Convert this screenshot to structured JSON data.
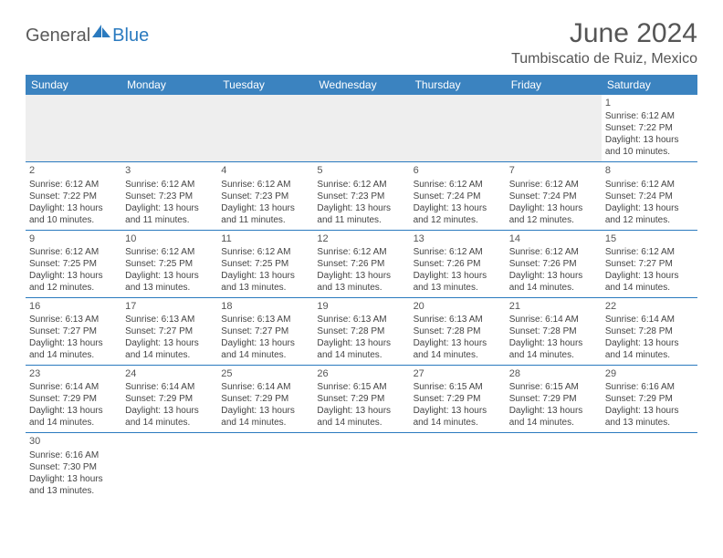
{
  "brand": {
    "general": "General",
    "blue": "Blue"
  },
  "title": {
    "month": "June 2024",
    "location": "Tumbiscatio de Ruiz, Mexico"
  },
  "dayHeaders": [
    "Sunday",
    "Monday",
    "Tuesday",
    "Wednesday",
    "Thursday",
    "Friday",
    "Saturday"
  ],
  "colors": {
    "headerBg": "#3b83c0",
    "headerText": "#ffffff",
    "ruleLine": "#2a7abf",
    "emptyBg": "#eeeeee",
    "bodyText": "#444444",
    "titleText": "#555555",
    "brandGray": "#5a5a5a",
    "brandBlue": "#2a7abf"
  },
  "weeks": [
    [
      null,
      null,
      null,
      null,
      null,
      null,
      {
        "n": "1",
        "sr": "Sunrise: 6:12 AM",
        "ss": "Sunset: 7:22 PM",
        "d1": "Daylight: 13 hours",
        "d2": "and 10 minutes."
      }
    ],
    [
      {
        "n": "2",
        "sr": "Sunrise: 6:12 AM",
        "ss": "Sunset: 7:22 PM",
        "d1": "Daylight: 13 hours",
        "d2": "and 10 minutes."
      },
      {
        "n": "3",
        "sr": "Sunrise: 6:12 AM",
        "ss": "Sunset: 7:23 PM",
        "d1": "Daylight: 13 hours",
        "d2": "and 11 minutes."
      },
      {
        "n": "4",
        "sr": "Sunrise: 6:12 AM",
        "ss": "Sunset: 7:23 PM",
        "d1": "Daylight: 13 hours",
        "d2": "and 11 minutes."
      },
      {
        "n": "5",
        "sr": "Sunrise: 6:12 AM",
        "ss": "Sunset: 7:23 PM",
        "d1": "Daylight: 13 hours",
        "d2": "and 11 minutes."
      },
      {
        "n": "6",
        "sr": "Sunrise: 6:12 AM",
        "ss": "Sunset: 7:24 PM",
        "d1": "Daylight: 13 hours",
        "d2": "and 12 minutes."
      },
      {
        "n": "7",
        "sr": "Sunrise: 6:12 AM",
        "ss": "Sunset: 7:24 PM",
        "d1": "Daylight: 13 hours",
        "d2": "and 12 minutes."
      },
      {
        "n": "8",
        "sr": "Sunrise: 6:12 AM",
        "ss": "Sunset: 7:24 PM",
        "d1": "Daylight: 13 hours",
        "d2": "and 12 minutes."
      }
    ],
    [
      {
        "n": "9",
        "sr": "Sunrise: 6:12 AM",
        "ss": "Sunset: 7:25 PM",
        "d1": "Daylight: 13 hours",
        "d2": "and 12 minutes."
      },
      {
        "n": "10",
        "sr": "Sunrise: 6:12 AM",
        "ss": "Sunset: 7:25 PM",
        "d1": "Daylight: 13 hours",
        "d2": "and 13 minutes."
      },
      {
        "n": "11",
        "sr": "Sunrise: 6:12 AM",
        "ss": "Sunset: 7:25 PM",
        "d1": "Daylight: 13 hours",
        "d2": "and 13 minutes."
      },
      {
        "n": "12",
        "sr": "Sunrise: 6:12 AM",
        "ss": "Sunset: 7:26 PM",
        "d1": "Daylight: 13 hours",
        "d2": "and 13 minutes."
      },
      {
        "n": "13",
        "sr": "Sunrise: 6:12 AM",
        "ss": "Sunset: 7:26 PM",
        "d1": "Daylight: 13 hours",
        "d2": "and 13 minutes."
      },
      {
        "n": "14",
        "sr": "Sunrise: 6:12 AM",
        "ss": "Sunset: 7:26 PM",
        "d1": "Daylight: 13 hours",
        "d2": "and 14 minutes."
      },
      {
        "n": "15",
        "sr": "Sunrise: 6:12 AM",
        "ss": "Sunset: 7:27 PM",
        "d1": "Daylight: 13 hours",
        "d2": "and 14 minutes."
      }
    ],
    [
      {
        "n": "16",
        "sr": "Sunrise: 6:13 AM",
        "ss": "Sunset: 7:27 PM",
        "d1": "Daylight: 13 hours",
        "d2": "and 14 minutes."
      },
      {
        "n": "17",
        "sr": "Sunrise: 6:13 AM",
        "ss": "Sunset: 7:27 PM",
        "d1": "Daylight: 13 hours",
        "d2": "and 14 minutes."
      },
      {
        "n": "18",
        "sr": "Sunrise: 6:13 AM",
        "ss": "Sunset: 7:27 PM",
        "d1": "Daylight: 13 hours",
        "d2": "and 14 minutes."
      },
      {
        "n": "19",
        "sr": "Sunrise: 6:13 AM",
        "ss": "Sunset: 7:28 PM",
        "d1": "Daylight: 13 hours",
        "d2": "and 14 minutes."
      },
      {
        "n": "20",
        "sr": "Sunrise: 6:13 AM",
        "ss": "Sunset: 7:28 PM",
        "d1": "Daylight: 13 hours",
        "d2": "and 14 minutes."
      },
      {
        "n": "21",
        "sr": "Sunrise: 6:14 AM",
        "ss": "Sunset: 7:28 PM",
        "d1": "Daylight: 13 hours",
        "d2": "and 14 minutes."
      },
      {
        "n": "22",
        "sr": "Sunrise: 6:14 AM",
        "ss": "Sunset: 7:28 PM",
        "d1": "Daylight: 13 hours",
        "d2": "and 14 minutes."
      }
    ],
    [
      {
        "n": "23",
        "sr": "Sunrise: 6:14 AM",
        "ss": "Sunset: 7:29 PM",
        "d1": "Daylight: 13 hours",
        "d2": "and 14 minutes."
      },
      {
        "n": "24",
        "sr": "Sunrise: 6:14 AM",
        "ss": "Sunset: 7:29 PM",
        "d1": "Daylight: 13 hours",
        "d2": "and 14 minutes."
      },
      {
        "n": "25",
        "sr": "Sunrise: 6:14 AM",
        "ss": "Sunset: 7:29 PM",
        "d1": "Daylight: 13 hours",
        "d2": "and 14 minutes."
      },
      {
        "n": "26",
        "sr": "Sunrise: 6:15 AM",
        "ss": "Sunset: 7:29 PM",
        "d1": "Daylight: 13 hours",
        "d2": "and 14 minutes."
      },
      {
        "n": "27",
        "sr": "Sunrise: 6:15 AM",
        "ss": "Sunset: 7:29 PM",
        "d1": "Daylight: 13 hours",
        "d2": "and 14 minutes."
      },
      {
        "n": "28",
        "sr": "Sunrise: 6:15 AM",
        "ss": "Sunset: 7:29 PM",
        "d1": "Daylight: 13 hours",
        "d2": "and 14 minutes."
      },
      {
        "n": "29",
        "sr": "Sunrise: 6:16 AM",
        "ss": "Sunset: 7:29 PM",
        "d1": "Daylight: 13 hours",
        "d2": "and 13 minutes."
      }
    ],
    [
      {
        "n": "30",
        "sr": "Sunrise: 6:16 AM",
        "ss": "Sunset: 7:30 PM",
        "d1": "Daylight: 13 hours",
        "d2": "and 13 minutes."
      },
      null,
      null,
      null,
      null,
      null,
      null
    ]
  ]
}
